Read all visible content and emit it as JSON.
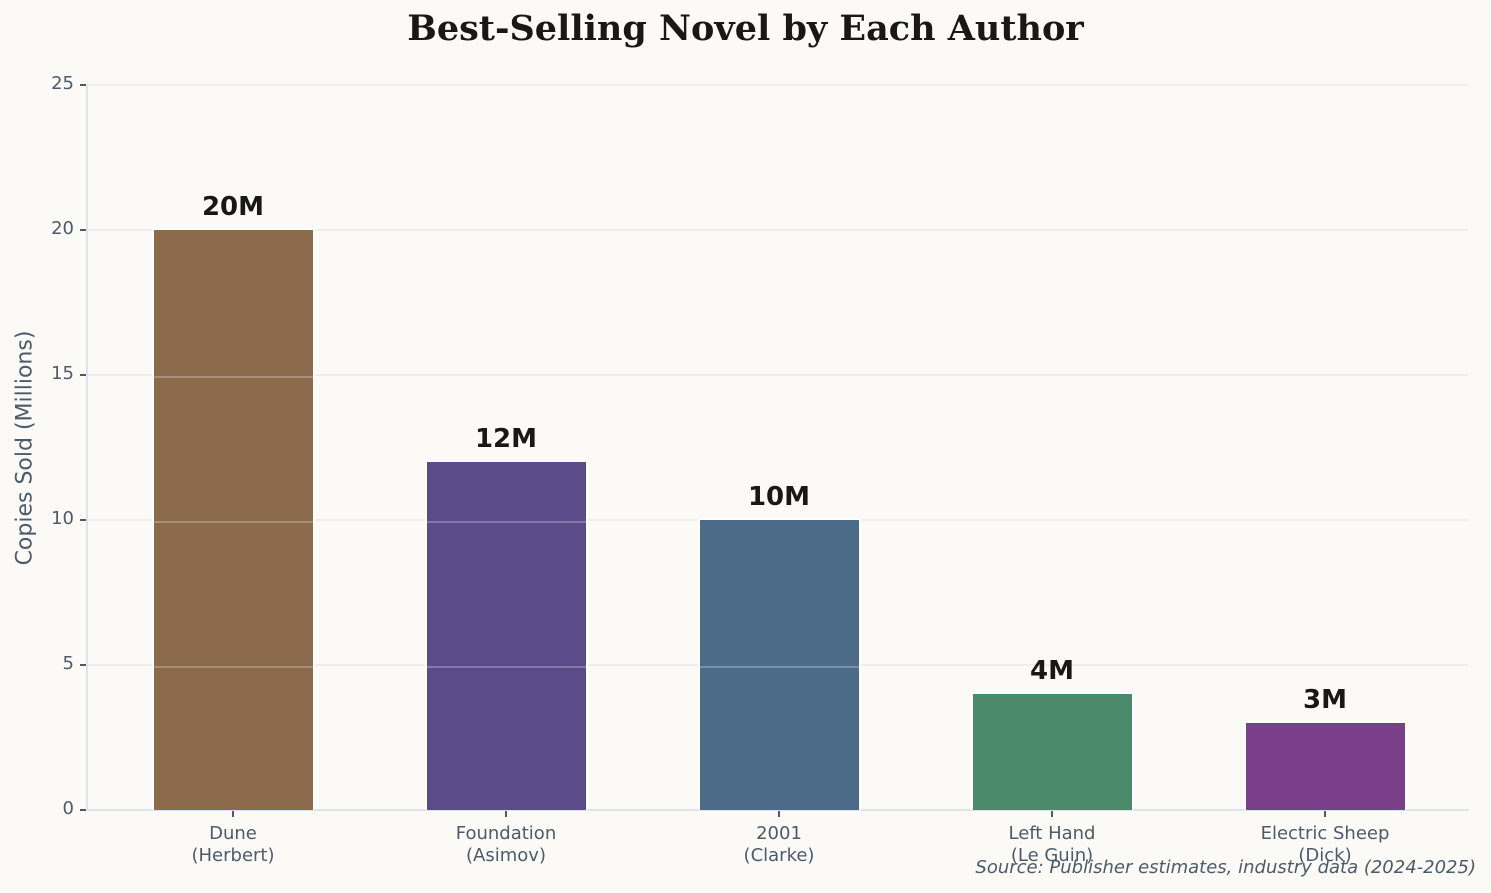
{
  "chart_data": {
    "type": "bar",
    "title": "Best-Selling Novel by Each Author",
    "xlabel": "",
    "ylabel": "Copies Sold (Millions)",
    "categories": [
      "Dune\n(Herbert)",
      "Foundation\n(Asimov)",
      "2001\n(Clarke)",
      "Left Hand\n(Le Guin)",
      "Electric Sheep\n(Dick)"
    ],
    "values": [
      20,
      12,
      10,
      4,
      3
    ],
    "value_labels": [
      "20M",
      "12M",
      "10M",
      "4M",
      "3M"
    ],
    "colors": [
      "#8b6b4b",
      "#5b4b88",
      "#4b6b89",
      "#4b8a6b",
      "#7b3f8a"
    ],
    "ylim": [
      0,
      25
    ],
    "yticks": [
      0,
      5,
      10,
      15,
      20,
      25
    ],
    "grid": true,
    "legend": null,
    "annotations": [
      "Source: Publisher estimates, industry data (2024-2025)"
    ]
  },
  "source_note": "Source: Publisher estimates, industry data (2024-2025)"
}
